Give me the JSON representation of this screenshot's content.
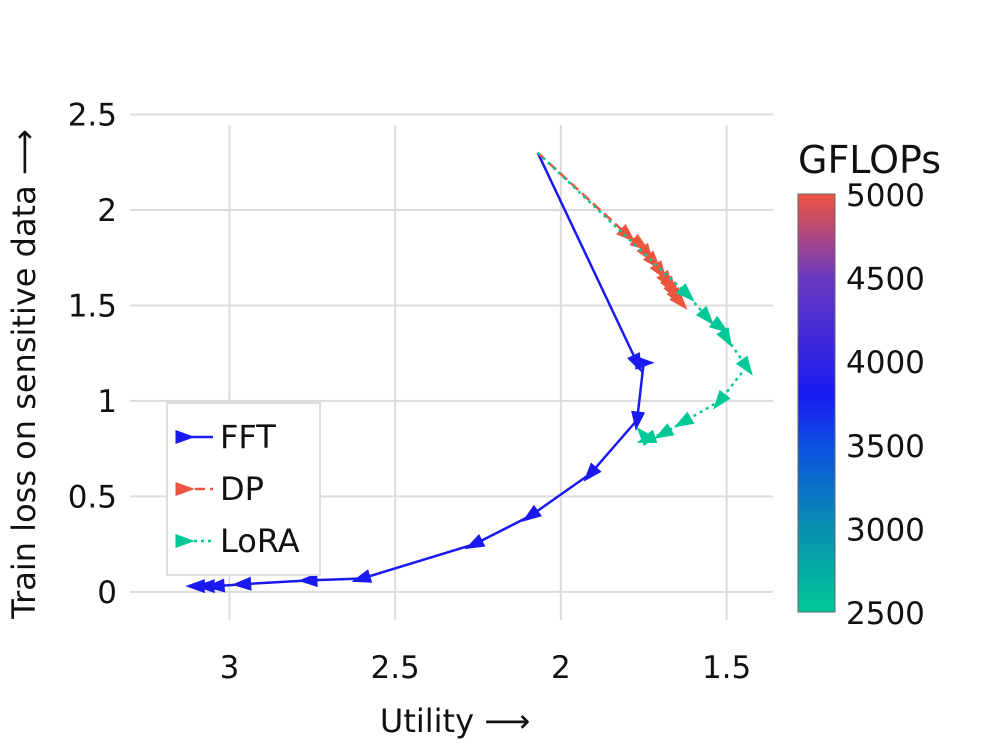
{
  "chart_data": {
    "type": "line",
    "xlabel": "Utility ⟶",
    "ylabel": "Train loss on sensitive data ⟶",
    "xlim": [
      3.3,
      1.36
    ],
    "ylim": [
      -0.2,
      2.55
    ],
    "x_ticks": [
      3,
      2.5,
      2,
      1.5
    ],
    "x_tick_labels": [
      "3",
      "2.5",
      "2",
      "1.5"
    ],
    "y_ticks": [
      0,
      0.5,
      1,
      1.5,
      2,
      2.5
    ],
    "y_tick_labels": [
      "0",
      "0.5",
      "1",
      "1.5",
      "2",
      "2.5"
    ],
    "legend_location": "lower-left",
    "colorbar": {
      "title": "GFLOPs",
      "min": 2500,
      "max": 5000,
      "ticks": [
        2500,
        3000,
        3500,
        4000,
        4500,
        5000
      ],
      "tick_labels": [
        "2500",
        "3000",
        "3500",
        "4000",
        "4500",
        "5000"
      ],
      "stops": [
        {
          "value": 2500,
          "color": "#00c896"
        },
        {
          "value": 3000,
          "color": "#0a8fb0"
        },
        {
          "value": 3500,
          "color": "#0e4fe0"
        },
        {
          "value": 3800,
          "color": "#1a1af0"
        },
        {
          "value": 4500,
          "color": "#6a3ac0"
        },
        {
          "value": 5000,
          "color": "#ee5540"
        }
      ]
    },
    "series": [
      {
        "name": "FFT",
        "color": "#1a1af0",
        "dash": "solid",
        "x": [
          2.07,
          1.77,
          1.75,
          1.77,
          1.91,
          2.09,
          2.26,
          2.6,
          2.76,
          2.96,
          3.04,
          3.07,
          3.1
        ],
        "y": [
          2.3,
          1.2,
          1.2,
          0.9,
          0.62,
          0.4,
          0.25,
          0.07,
          0.06,
          0.04,
          0.03,
          0.03,
          0.03
        ]
      },
      {
        "name": "DP",
        "color": "#ee5540",
        "dash": "dashed",
        "x": [
          2.07,
          1.8,
          1.76,
          1.74,
          1.72,
          1.7,
          1.68,
          1.67,
          1.66,
          1.65,
          1.64
        ],
        "y": [
          2.3,
          1.87,
          1.82,
          1.77,
          1.73,
          1.68,
          1.63,
          1.6,
          1.57,
          1.54,
          1.52
        ]
      },
      {
        "name": "LoRA",
        "color": "#00c896",
        "dash": "dotted",
        "x": [
          2.07,
          1.62,
          1.56,
          1.52,
          1.5,
          1.44,
          1.52,
          1.63,
          1.69,
          1.74,
          1.75
        ],
        "y": [
          2.3,
          1.56,
          1.44,
          1.39,
          1.33,
          1.18,
          1.0,
          0.89,
          0.83,
          0.8,
          0.82
        ]
      }
    ]
  }
}
